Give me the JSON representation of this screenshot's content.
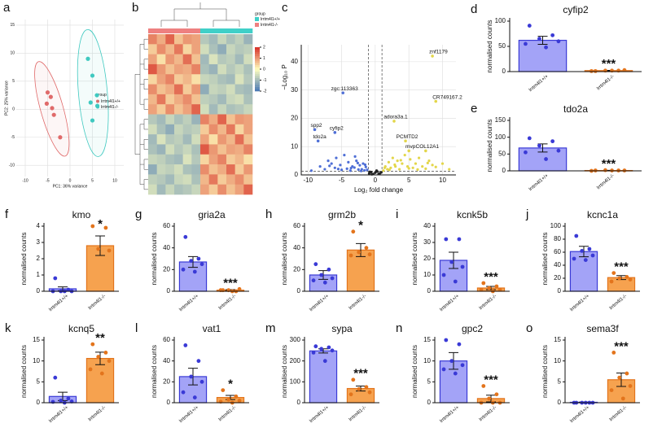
{
  "style": {
    "bar_colors": [
      {
        "fill": "#a3a3f7",
        "line": "#3a3ad6"
      },
      {
        "fill": "#f6a24f",
        "line": "#e3741c"
      }
    ]
  },
  "chart_data": [
    {
      "type": "scatter",
      "panel": "a",
      "xlabel": "PC1: 36% variance",
      "ylabel": "PC2: 25% variance",
      "legend_title": "group",
      "series": [
        {
          "name": "lrrtm4l1+/+",
          "color": "#e06a6a",
          "x": [
            -5,
            -4.3,
            -5.2,
            -4,
            -3.6,
            -2.2
          ],
          "y": [
            3,
            2.2,
            1,
            0.2,
            -1,
            -5
          ]
        },
        {
          "name": "lrrtm4l1-/-",
          "color": "#3fc9c0",
          "x": [
            4,
            5,
            6,
            4.6,
            6.1,
            5
          ],
          "y": [
            9,
            6,
            2.5,
            1.2,
            0.6,
            -2
          ]
        }
      ],
      "xlim": [
        -12,
        12
      ],
      "ylim": [
        -12,
        16
      ],
      "xticks": [
        -10,
        -5,
        0,
        5,
        10
      ],
      "yticks": [
        -10,
        -5,
        0,
        5,
        10,
        15
      ]
    },
    {
      "type": "heatmap",
      "panel": "b",
      "legend_title": "group",
      "groups": [
        {
          "name": "lrrtm4l1+/+",
          "color": "#40d0c8"
        },
        {
          "name": "lrrtm4l1-/-",
          "color": "#ee8080"
        }
      ],
      "column_groups": [
        1,
        1,
        1,
        1,
        1,
        1,
        0,
        0,
        0,
        0,
        0,
        0
      ],
      "clim": [
        -2,
        2
      ],
      "cticks": [
        2,
        1,
        0,
        -1,
        -2
      ],
      "colorscale": [
        "#4575b4",
        "#ffffbf",
        "#d73027"
      ],
      "matrix": [
        [
          1.2,
          0.8,
          1.5,
          0.6,
          1.0,
          0.9,
          -0.8,
          -1.0,
          -0.6,
          -0.9,
          -0.7,
          -1.1
        ],
        [
          0.5,
          1.1,
          0.7,
          1.3,
          0.4,
          0.9,
          -0.5,
          -0.9,
          -1.2,
          -0.6,
          -0.8,
          -0.7
        ],
        [
          0.9,
          0.3,
          1.0,
          0.7,
          1.4,
          0.6,
          -1.0,
          -0.4,
          -0.8,
          -0.7,
          -1.0,
          -0.5
        ],
        [
          1.6,
          1.0,
          0.6,
          0.9,
          0.8,
          1.2,
          -0.9,
          -1.1,
          -0.5,
          -0.8,
          -0.6,
          -0.9
        ],
        [
          0.4,
          0.9,
          1.2,
          0.5,
          0.7,
          0.3,
          -0.6,
          -0.7,
          -0.9,
          -1.0,
          -0.4,
          -0.8
        ],
        [
          1.1,
          0.6,
          0.8,
          1.4,
          0.5,
          1.0,
          -1.2,
          -0.6,
          -0.7,
          -0.5,
          -0.9,
          -1.0
        ],
        [
          0.7,
          1.3,
          0.5,
          0.8,
          1.1,
          0.6,
          -0.7,
          -0.8,
          -1.0,
          -0.6,
          -0.5,
          -0.9
        ],
        [
          0.9,
          0.5,
          1.1,
          0.6,
          0.9,
          1.5,
          -0.5,
          -1.0,
          -0.6,
          -0.9,
          -0.8,
          -0.6
        ],
        [
          -0.8,
          -1.0,
          -0.6,
          -0.9,
          -0.7,
          -1.1,
          1.2,
          0.8,
          1.5,
          0.6,
          1.0,
          0.9
        ],
        [
          -0.5,
          -0.9,
          -1.2,
          -0.6,
          -0.8,
          -0.7,
          0.5,
          1.1,
          0.7,
          1.3,
          0.4,
          0.9
        ],
        [
          -1.0,
          -0.4,
          -0.8,
          -0.7,
          -1.0,
          -0.5,
          0.9,
          0.3,
          1.0,
          0.7,
          1.4,
          0.6
        ],
        [
          -0.9,
          -1.1,
          -0.5,
          -0.8,
          -0.6,
          -0.9,
          1.6,
          1.0,
          0.6,
          0.9,
          0.8,
          1.2
        ],
        [
          -0.6,
          -0.7,
          -0.9,
          -1.0,
          -0.4,
          -0.8,
          0.4,
          0.9,
          1.2,
          0.5,
          0.7,
          0.3
        ],
        [
          -1.2,
          -0.6,
          -0.7,
          -0.5,
          -0.9,
          -1.0,
          1.1,
          0.6,
          0.8,
          1.4,
          0.5,
          1.0
        ],
        [
          -0.7,
          -0.8,
          -1.0,
          -0.6,
          -0.5,
          -0.9,
          0.7,
          1.3,
          0.5,
          0.8,
          1.1,
          0.6
        ],
        [
          -0.5,
          -1.0,
          -0.6,
          -0.9,
          -0.8,
          -0.6,
          0.9,
          0.5,
          1.1,
          0.6,
          0.9,
          1.5
        ]
      ]
    },
    {
      "type": "volcano",
      "panel": "c",
      "xlabel": "Log₂ fold change",
      "ylabel": "−Log₁₀ P",
      "xlim": [
        -11,
        12
      ],
      "ylim": [
        0,
        46
      ],
      "xticks": [
        -10,
        -5,
        0,
        5,
        10
      ],
      "yticks": [
        0,
        10,
        20,
        30,
        40
      ],
      "fc_cutoff": [
        -1,
        1
      ],
      "p_cutoff": 1.3,
      "series": [
        {
          "color": "#4f6fd6",
          "x": [
            -9.5,
            -8.2,
            -7.5,
            -7,
            -6.5,
            -6,
            -5.8,
            -5.2,
            -5,
            -4.6,
            -4.2,
            -4,
            -3.7,
            -3.4,
            -3.1,
            -2.8,
            -2.5,
            -2.3,
            -2,
            -1.8,
            -1.6,
            -1.4,
            -1.2,
            -6.8,
            -5.5,
            -3,
            -2.6,
            -1.5,
            -2.1,
            -3.6
          ],
          "y": [
            1.5,
            3,
            2,
            5,
            4,
            2.5,
            6,
            3.5,
            1.8,
            7,
            2.2,
            4.5,
            1.5,
            3,
            2.6,
            5,
            1.9,
            3.4,
            2,
            4,
            1.6,
            2.8,
            1.8,
            3.2,
            2.1,
            6.5,
            4.2,
            3.6,
            1.4,
            2.4
          ]
        },
        {
          "color": "#e3d64a",
          "x": [
            1.2,
            1.5,
            1.8,
            2,
            2.3,
            2.6,
            3,
            3.3,
            3.6,
            4,
            4.4,
            4.8,
            5.2,
            5.6,
            6,
            6.5,
            7,
            7.5,
            8,
            8.5,
            9,
            10,
            11,
            1.4,
            2.1,
            2.9,
            3.8,
            5,
            6.3,
            7.8
          ],
          "y": [
            1.5,
            3,
            2,
            4.5,
            2.5,
            6,
            3,
            5,
            2,
            4,
            7,
            3,
            5.5,
            2.5,
            4,
            6,
            3,
            2.2,
            5,
            3.5,
            2.8,
            4,
            2,
            2.5,
            1.8,
            3.6,
            5.2,
            2.3,
            1.9,
            4.2
          ]
        },
        {
          "color": "#222222",
          "x": [
            -0.9,
            -0.6,
            -0.3,
            0,
            0.3,
            0.6,
            0.9,
            -0.5,
            0.2,
            0.7,
            -0.8,
            0.5
          ],
          "y": [
            0.5,
            1,
            0.3,
            0.8,
            1.2,
            0.4,
            0.9,
            0.2,
            1.5,
            0.6,
            1.1,
            0.3
          ]
        }
      ],
      "annotations": [
        {
          "text": "znf1179",
          "x": 8.5,
          "y": 42
        },
        {
          "text": "zgc:113363",
          "x": -4.8,
          "y": 29
        },
        {
          "text": "CR749167.2",
          "x": 9,
          "y": 26
        },
        {
          "text": "adora3a.1",
          "x": 2.8,
          "y": 19
        },
        {
          "text": "spp2",
          "x": -9,
          "y": 16
        },
        {
          "text": "cyfip2",
          "x": -6,
          "y": 15
        },
        {
          "text": "tdo2a",
          "x": -8.5,
          "y": 12
        },
        {
          "text": "PCMTD2",
          "x": 4.5,
          "y": 12
        },
        {
          "text": "mvp",
          "x": 5,
          "y": 8.5
        },
        {
          "text": "COL12A1",
          "x": 7.5,
          "y": 8.5
        }
      ]
    },
    {
      "type": "bar",
      "panel": "d",
      "title": "cyfip2",
      "ylabel": "normalised counts",
      "categories": [
        "lrrtm4l1+/+",
        "lrrtm4l1-/-"
      ],
      "values": [
        62,
        2
      ],
      "errors": [
        8,
        0.5
      ],
      "points": [
        [
          91,
          72,
          65,
          60,
          55,
          48
        ],
        [
          1,
          2,
          2,
          3,
          1,
          2
        ]
      ],
      "ylim": [
        0,
        100
      ],
      "yticks": [
        0,
        50,
        100
      ],
      "significance": "***"
    },
    {
      "type": "bar",
      "panel": "e",
      "title": "tdo2a",
      "ylabel": "normalised counts",
      "categories": [
        "lrrtm4l1+/+",
        "lrrtm4l1-/-"
      ],
      "values": [
        68,
        1
      ],
      "errors": [
        12,
        0.5
      ],
      "points": [
        [
          97,
          88,
          75,
          60,
          55,
          35
        ],
        [
          1,
          1,
          2,
          1,
          0,
          1
        ]
      ],
      "ylim": [
        0,
        150
      ],
      "yticks": [
        0,
        50,
        100,
        150
      ],
      "significance": "***"
    },
    {
      "type": "bar",
      "panel": "f",
      "title": "kmo",
      "ylabel": "normalised counts",
      "categories": [
        "lrrtm4l1+/+",
        "lrrtm4l1-/-"
      ],
      "values": [
        0.15,
        2.8
      ],
      "errors": [
        0.12,
        0.6
      ],
      "points": [
        [
          0.8,
          0.1,
          0,
          0,
          0,
          0
        ],
        [
          4,
          3.9,
          2.6,
          2.5
        ]
      ],
      "ylim": [
        0,
        4
      ],
      "yticks": [
        0,
        1,
        2,
        3,
        4
      ],
      "significance": "*"
    },
    {
      "type": "bar",
      "panel": "g",
      "title": "gria2a",
      "ylabel": "normalised counts",
      "categories": [
        "lrrtm4l1+/+",
        "lrrtm4l1-/-"
      ],
      "values": [
        27,
        1
      ],
      "errors": [
        5,
        0.5
      ],
      "points": [
        [
          50,
          30,
          28,
          25,
          20,
          18
        ],
        [
          1,
          0,
          1,
          2,
          1,
          0
        ]
      ],
      "ylim": [
        0,
        60
      ],
      "yticks": [
        0,
        20,
        40,
        60
      ],
      "significance": "***"
    },
    {
      "type": "bar",
      "panel": "h",
      "title": "grm2b",
      "ylabel": "normalised counts",
      "categories": [
        "lrrtm4l1+/+",
        "lrrtm4l1-/-"
      ],
      "values": [
        15,
        38
      ],
      "errors": [
        4,
        6
      ],
      "points": [
        [
          25,
          20,
          15,
          12,
          10,
          8
        ],
        [
          55,
          40,
          36,
          34,
          33
        ]
      ],
      "ylim": [
        0,
        60
      ],
      "yticks": [
        0,
        20,
        40,
        60
      ],
      "significance": "*"
    },
    {
      "type": "bar",
      "panel": "i",
      "title": "kcnk5b",
      "ylabel": "normalised counts",
      "categories": [
        "lrrtm4l1+/+",
        "lrrtm4l1-/-"
      ],
      "values": [
        19,
        2
      ],
      "errors": [
        5,
        1
      ],
      "points": [
        [
          32,
          32,
          18,
          15,
          10,
          6
        ],
        [
          5,
          3,
          2,
          1,
          1,
          0
        ]
      ],
      "ylim": [
        0,
        40
      ],
      "yticks": [
        0,
        10,
        20,
        30,
        40
      ],
      "significance": "***"
    },
    {
      "type": "bar",
      "panel": "j",
      "title": "kcnc1a",
      "ylabel": "normalised counts",
      "categories": [
        "lrrtm4l1+/+",
        "lrrtm4l1-/-"
      ],
      "values": [
        61,
        21
      ],
      "errors": [
        8,
        3
      ],
      "points": [
        [
          85,
          65,
          62,
          55,
          50,
          48
        ],
        [
          28,
          22,
          20,
          18,
          15
        ]
      ],
      "ylim": [
        0,
        100
      ],
      "yticks": [
        0,
        20,
        40,
        60,
        80,
        100
      ],
      "significance": "***"
    },
    {
      "type": "bar",
      "panel": "k",
      "title": "kcnq5",
      "ylabel": "normalised counts",
      "categories": [
        "lrrtm4l1+/+",
        "lrrtm4l1-/-"
      ],
      "values": [
        1.5,
        10.6
      ],
      "errors": [
        1,
        1.5
      ],
      "points": [
        [
          6,
          1,
          0.5,
          0.3,
          0.2,
          0
        ],
        [
          14,
          12,
          11,
          10,
          8,
          7
        ]
      ],
      "ylim": [
        0,
        15
      ],
      "yticks": [
        0,
        5,
        10,
        15
      ],
      "significance": "**"
    },
    {
      "type": "bar",
      "panel": "l",
      "title": "vat1",
      "ylabel": "normalised counts",
      "categories": [
        "lrrtm4l1+/+",
        "lrrtm4l1-/-"
      ],
      "values": [
        25,
        5
      ],
      "errors": [
        8,
        2
      ],
      "points": [
        [
          55,
          40,
          25,
          20,
          10,
          5
        ],
        [
          12,
          6,
          3,
          2,
          1,
          0
        ]
      ],
      "ylim": [
        0,
        60
      ],
      "yticks": [
        0,
        20,
        40,
        60
      ],
      "significance": "*"
    },
    {
      "type": "bar",
      "panel": "m",
      "title": "sypa",
      "ylabel": "normalised counts",
      "categories": [
        "lrrtm4l1+/+",
        "lrrtm4l1-/-"
      ],
      "values": [
        248,
        68
      ],
      "errors": [
        10,
        12
      ],
      "points": [
        [
          270,
          265,
          258,
          250,
          240,
          200
        ],
        [
          110,
          75,
          65,
          50,
          40
        ]
      ],
      "ylim": [
        0,
        300
      ],
      "yticks": [
        0,
        100,
        200,
        300
      ],
      "significance": "***"
    },
    {
      "type": "bar",
      "panel": "n",
      "title": "gpc2",
      "ylabel": "normalised counts",
      "categories": [
        "lrrtm4l1+/+",
        "lrrtm4l1-/-"
      ],
      "values": [
        10,
        1
      ],
      "errors": [
        2,
        0.8
      ],
      "points": [
        [
          15,
          14,
          10,
          9,
          8,
          7
        ],
        [
          4,
          2,
          1,
          0,
          0,
          0
        ]
      ],
      "ylim": [
        0,
        15
      ],
      "yticks": [
        0,
        5,
        10,
        15
      ],
      "significance": "***"
    },
    {
      "type": "bar",
      "panel": "o",
      "title": "sema3f",
      "ylabel": "normalised counts",
      "categories": [
        "lrrtm4l1+/+",
        "lrrtm4l1-/-"
      ],
      "values": [
        0.1,
        5.5
      ],
      "errors": [
        0.05,
        1.6
      ],
      "points": [
        [
          0,
          0,
          0,
          0,
          0,
          0
        ],
        [
          12,
          7,
          6,
          4,
          3,
          1
        ]
      ],
      "ylim": [
        0,
        15
      ],
      "yticks": [
        0,
        5,
        10,
        15
      ],
      "significance": "***"
    }
  ]
}
